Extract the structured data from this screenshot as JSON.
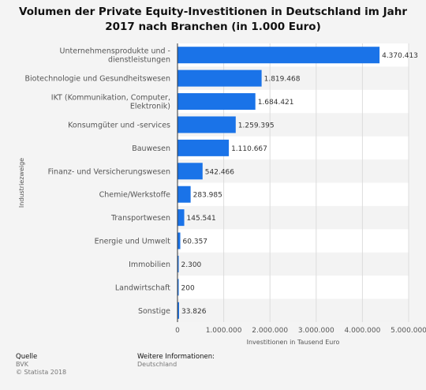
{
  "chart_data": {
    "type": "bar",
    "orientation": "horizontal",
    "title": "Volumen der Private Equity-Investitionen in Deutschland im Jahr 2017 nach Branchen (in 1.000 Euro)",
    "xlabel": "Investitionen in Tausend Euro",
    "ylabel": "Industriezweige",
    "xlim": [
      0,
      5000000
    ],
    "xticks": [
      "0",
      "1.000.000",
      "2.000.000",
      "3.000.000",
      "4.000.000",
      "5.000.000"
    ],
    "grid": true,
    "categories": [
      [
        "Unternehmensprodukte und -",
        "dienstleistungen"
      ],
      [
        "Biotechnologie und Gesundheitswesen"
      ],
      [
        "IKT (Kommunikation, Computer,",
        "Elektronik)"
      ],
      [
        "Konsumgüter und -services"
      ],
      [
        "Bauwesen"
      ],
      [
        "Finanz- und Versicherungswesen"
      ],
      [
        "Chemie/Werkstoffe"
      ],
      [
        "Transportwesen"
      ],
      [
        "Energie und Umwelt"
      ],
      [
        "Immobilien"
      ],
      [
        "Landwirtschaft"
      ],
      [
        "Sonstige"
      ]
    ],
    "values": [
      4370413,
      1819468,
      1684421,
      1259395,
      1110667,
      542466,
      283985,
      145541,
      60357,
      2300,
      200,
      33826
    ],
    "value_labels": [
      "4.370.413",
      "1.819.468",
      "1.684.421",
      "1.259.395",
      "1.110.667",
      "542.466",
      "283.985",
      "145.541",
      "60.357",
      "2.300",
      "200",
      "33.826"
    ],
    "bar_color": "#1a73e8"
  },
  "footer": {
    "source_heading": "Quelle",
    "source_name": "BVK",
    "copyright": "© Statista 2018",
    "info_heading": "Weitere Informationen:",
    "info_text": "Deutschland"
  }
}
